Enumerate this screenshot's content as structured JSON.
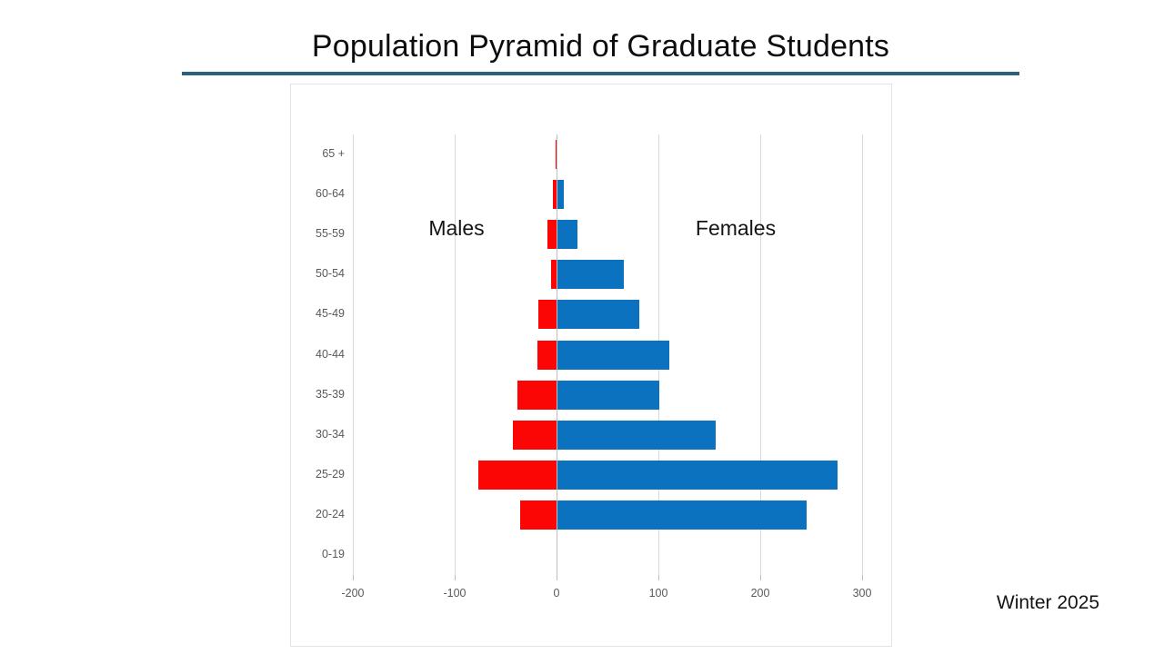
{
  "title": "Population Pyramid of Graduate Students",
  "footer": {
    "date_label": "Winter 2025"
  },
  "colors": {
    "males_bar": "#fb0505",
    "females_bar": "#0b72c0",
    "title_rule": "#2b5f7d",
    "gridline": "#d9d9d9",
    "axis_line": "#bfbfbf",
    "axis_text": "#595959"
  },
  "chart_data": {
    "type": "bar",
    "orientation": "horizontal",
    "title": "Population Pyramid of Graduate Students",
    "xlabel": "",
    "ylabel": "",
    "grid": true,
    "xlim": [
      -260,
      330
    ],
    "x_ticks": [
      -200,
      -100,
      0,
      100,
      200,
      300
    ],
    "x_tick_labels": [
      "-200",
      "-100",
      "0",
      "100",
      "200",
      "300"
    ],
    "categories": [
      "65 +",
      "60-64",
      "55-59",
      "50-54",
      "45-49",
      "40-44",
      "35-39",
      "30-34",
      "25-29",
      "20-24",
      "0-19"
    ],
    "series": [
      {
        "name": "Males",
        "color": "#fb0505",
        "values": [
          -1,
          -4,
          -9,
          -5,
          -18,
          -19,
          -38,
          -43,
          -77,
          -36,
          0
        ]
      },
      {
        "name": "Females",
        "color": "#0b72c0",
        "values": [
          0,
          6,
          20,
          65,
          80,
          110,
          100,
          155,
          275,
          245,
          0
        ]
      }
    ],
    "legend_position": "inline-annotations"
  }
}
